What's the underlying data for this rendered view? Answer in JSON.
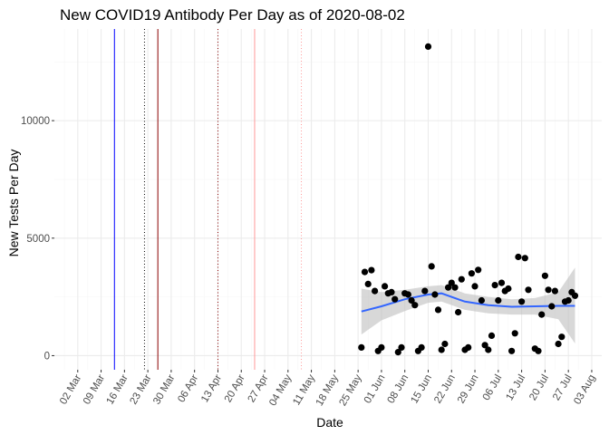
{
  "chart_data": {
    "type": "scatter",
    "title": "New COVID19 Antibody Per Day as of 2020-08-02",
    "xlabel": "Date",
    "ylabel": "New Tests Per Day",
    "x_tick_labels": [
      "02 Mar",
      "09 Mar",
      "16 Mar",
      "23 Mar",
      "30 Mar",
      "06 Apr",
      "13 Apr",
      "20 Apr",
      "27 Apr",
      "04 May",
      "11 May",
      "18 May",
      "25 May",
      "01 Jun",
      "08 Jun",
      "15 Jun",
      "22 Jun",
      "29 Jun",
      "06 Jul",
      "13 Jul",
      "20 Jul",
      "27 Jul",
      "03 Aug"
    ],
    "x_tick_dates": [
      "2020-03-02",
      "2020-03-09",
      "2020-03-16",
      "2020-03-23",
      "2020-03-30",
      "2020-04-06",
      "2020-04-13",
      "2020-04-20",
      "2020-04-27",
      "2020-05-04",
      "2020-05-11",
      "2020-05-18",
      "2020-05-25",
      "2020-06-01",
      "2020-06-08",
      "2020-06-15",
      "2020-06-22",
      "2020-06-29",
      "2020-07-06",
      "2020-07-13",
      "2020-07-20",
      "2020-07-27",
      "2020-08-03"
    ],
    "y_ticks": [
      0,
      5000,
      10000
    ],
    "xlim": [
      "2020-02-24",
      "2020-08-06"
    ],
    "ylim": [
      -600,
      13900
    ],
    "grid": true,
    "vlines": [
      {
        "date": "2020-03-13",
        "color": "#0000ff",
        "style": "solid"
      },
      {
        "date": "2020-03-22",
        "color": "#000000",
        "style": "dotted"
      },
      {
        "date": "2020-03-26",
        "color": "#8b0000",
        "style": "solid"
      },
      {
        "date": "2020-04-13",
        "color": "#8b0000",
        "style": "dotted"
      },
      {
        "date": "2020-04-24",
        "color": "#ff9999",
        "style": "solid"
      },
      {
        "date": "2020-05-08",
        "color": "#ff9999",
        "style": "dotted"
      }
    ],
    "series": [
      {
        "type": "points",
        "color": "#000000",
        "points": [
          [
            "2020-05-26",
            350
          ],
          [
            "2020-05-27",
            3560
          ],
          [
            "2020-05-28",
            3050
          ],
          [
            "2020-05-29",
            3640
          ],
          [
            "2020-05-30",
            2750
          ],
          [
            "2020-05-31",
            200
          ],
          [
            "2020-06-01",
            350
          ],
          [
            "2020-06-02",
            2950
          ],
          [
            "2020-06-03",
            2650
          ],
          [
            "2020-06-04",
            2700
          ],
          [
            "2020-06-05",
            2400
          ],
          [
            "2020-06-06",
            150
          ],
          [
            "2020-06-07",
            350
          ],
          [
            "2020-06-08",
            2650
          ],
          [
            "2020-06-09",
            2600
          ],
          [
            "2020-06-10",
            2350
          ],
          [
            "2020-06-11",
            2150
          ],
          [
            "2020-06-12",
            200
          ],
          [
            "2020-06-13",
            350
          ],
          [
            "2020-06-14",
            2750
          ],
          [
            "2020-06-15",
            13150
          ],
          [
            "2020-06-16",
            3800
          ],
          [
            "2020-06-17",
            2600
          ],
          [
            "2020-06-18",
            1950
          ],
          [
            "2020-06-19",
            250
          ],
          [
            "2020-06-20",
            500
          ],
          [
            "2020-06-21",
            2900
          ],
          [
            "2020-06-22",
            3100
          ],
          [
            "2020-06-23",
            2900
          ],
          [
            "2020-06-24",
            1850
          ],
          [
            "2020-06-25",
            3250
          ],
          [
            "2020-06-26",
            250
          ],
          [
            "2020-06-27",
            350
          ],
          [
            "2020-06-28",
            3500
          ],
          [
            "2020-06-29",
            2950
          ],
          [
            "2020-06-30",
            3650
          ],
          [
            "2020-07-01",
            2350
          ],
          [
            "2020-07-02",
            450
          ],
          [
            "2020-07-03",
            250
          ],
          [
            "2020-07-04",
            850
          ],
          [
            "2020-07-05",
            3000
          ],
          [
            "2020-07-06",
            2350
          ],
          [
            "2020-07-07",
            3100
          ],
          [
            "2020-07-08",
            2750
          ],
          [
            "2020-07-09",
            2850
          ],
          [
            "2020-07-10",
            200
          ],
          [
            "2020-07-11",
            950
          ],
          [
            "2020-07-12",
            4200
          ],
          [
            "2020-07-13",
            2300
          ],
          [
            "2020-07-14",
            4150
          ],
          [
            "2020-07-15",
            2800
          ],
          [
            "2020-07-17",
            300
          ],
          [
            "2020-07-18",
            200
          ],
          [
            "2020-07-19",
            1750
          ],
          [
            "2020-07-20",
            3400
          ],
          [
            "2020-07-21",
            2800
          ],
          [
            "2020-07-22",
            2100
          ],
          [
            "2020-07-23",
            2750
          ],
          [
            "2020-07-24",
            500
          ],
          [
            "2020-07-25",
            800
          ],
          [
            "2020-07-26",
            2300
          ],
          [
            "2020-07-27",
            2350
          ],
          [
            "2020-07-28",
            2700
          ],
          [
            "2020-07-29",
            2550
          ]
        ]
      },
      {
        "type": "smooth",
        "color": "#3366ff",
        "ribbon_color": "#bebebe",
        "points": [
          [
            "2020-05-26",
            1880,
            900,
            2850
          ],
          [
            "2020-06-01",
            2100,
            1500,
            2700
          ],
          [
            "2020-06-08",
            2400,
            1900,
            2800
          ],
          [
            "2020-06-15",
            2600,
            2250,
            2950
          ],
          [
            "2020-06-19",
            2650,
            2300,
            3000
          ],
          [
            "2020-06-26",
            2300,
            1950,
            2650
          ],
          [
            "2020-07-03",
            2150,
            1800,
            2500
          ],
          [
            "2020-07-10",
            2080,
            1750,
            2400
          ],
          [
            "2020-07-17",
            2100,
            1750,
            2450
          ],
          [
            "2020-07-24",
            2120,
            1550,
            2700
          ],
          [
            "2020-07-29",
            2120,
            520,
            3750
          ]
        ]
      }
    ]
  }
}
